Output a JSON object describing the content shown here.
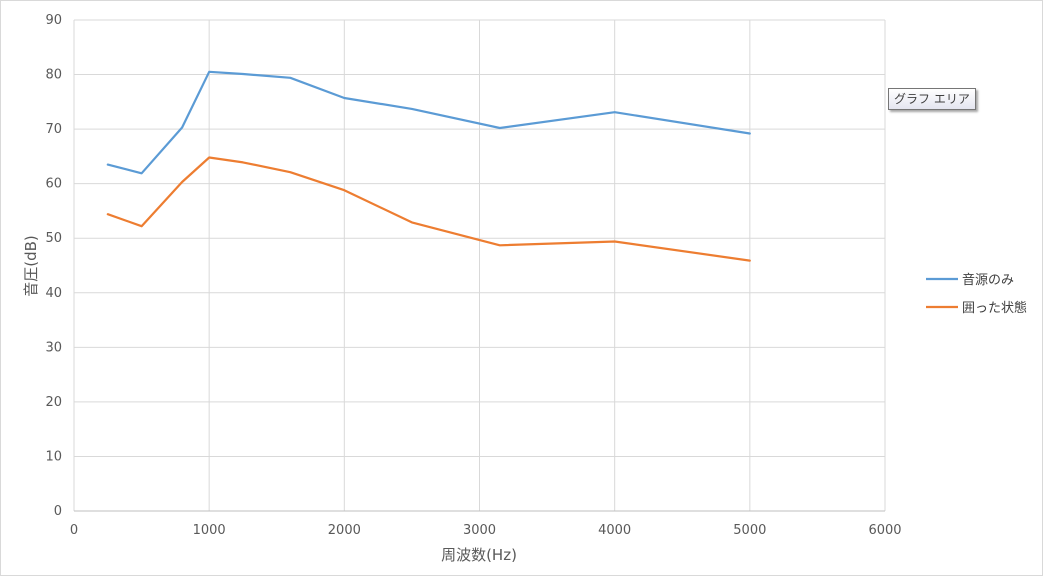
{
  "chart_data": {
    "type": "line",
    "xlabel": "周波数(Hz)",
    "ylabel": "音圧(dB)",
    "xlim": [
      0,
      6000
    ],
    "ylim": [
      0,
      90
    ],
    "xticks": [
      0,
      1000,
      2000,
      3000,
      4000,
      5000,
      6000
    ],
    "yticks": [
      0,
      10,
      20,
      30,
      40,
      50,
      60,
      70,
      80,
      90
    ],
    "grid": true,
    "legend_position": "right",
    "series": [
      {
        "name": "音源のみ",
        "color": "#5b9bd5",
        "x": [
          250,
          500,
          800,
          1000,
          1250,
          1600,
          2000,
          2500,
          3150,
          4000,
          5000
        ],
        "y": [
          63.5,
          61.9,
          70.3,
          80.5,
          80.1,
          79.4,
          75.7,
          73.7,
          70.2,
          73.1,
          69.2
        ]
      },
      {
        "name": "囲った状態",
        "color": "#ed7d31",
        "x": [
          250,
          500,
          800,
          1000,
          1250,
          1600,
          2000,
          2500,
          3150,
          4000,
          5000
        ],
        "y": [
          54.4,
          52.2,
          60.3,
          64.8,
          63.9,
          62.1,
          58.8,
          52.9,
          48.7,
          49.4,
          45.9
        ]
      }
    ]
  },
  "tooltip": {
    "label": "グラフ エリア"
  }
}
